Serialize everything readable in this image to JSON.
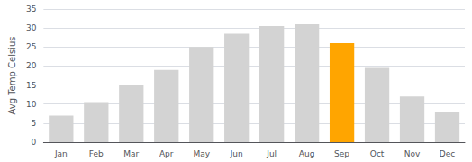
{
  "chart_data": {
    "type": "bar",
    "categories": [
      "Jan",
      "Feb",
      "Mar",
      "Apr",
      "May",
      "Jun",
      "Jul",
      "Aug",
      "Sep",
      "Oct",
      "Nov",
      "Dec"
    ],
    "values": [
      7,
      10.5,
      15,
      19,
      25,
      28.5,
      30.5,
      31,
      26,
      19.5,
      12,
      8
    ],
    "colors": [
      "#d3d3d3",
      "#d3d3d3",
      "#d3d3d3",
      "#d3d3d3",
      "#d3d3d3",
      "#d3d3d3",
      "#d3d3d3",
      "#d3d3d3",
      "#ffa500",
      "#d3d3d3",
      "#d3d3d3",
      "#d3d3d3"
    ],
    "ylabel": "Avg Temp Celsius",
    "ylim": [
      0,
      35
    ],
    "yticks": [
      0,
      5,
      10,
      15,
      20,
      25,
      30,
      35
    ],
    "grid": true
  }
}
